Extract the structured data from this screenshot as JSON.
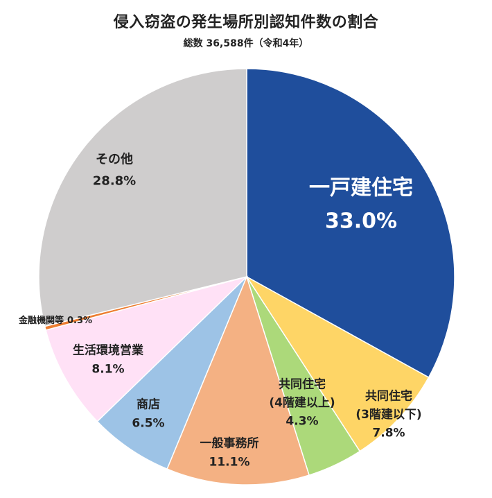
{
  "title": "侵入窃盗の発生場所別認知件数の割合",
  "subtitle": "総数 36,588件（令和4年）",
  "chart_data": {
    "type": "pie",
    "title": "侵入窃盗の発生場所別認知件数の割合",
    "subtitle": "総数 36,588件（令和4年）",
    "slices": [
      {
        "lines": [
          "一戸建住宅"
        ],
        "value": 33.0,
        "value_label": "33.0%",
        "color": "#1f4e9c",
        "text_color": "#ffffff"
      },
      {
        "lines": [
          "共同住宅",
          "(3階建以下)"
        ],
        "value": 7.8,
        "value_label": "7.8%",
        "color": "#fed566",
        "text_color": "#222222"
      },
      {
        "lines": [
          "共同住宅",
          "(4階建以上)"
        ],
        "value": 4.3,
        "value_label": "4.3%",
        "color": "#acd97a",
        "text_color": "#222222"
      },
      {
        "lines": [
          "一般事務所"
        ],
        "value": 11.1,
        "value_label": "11.1%",
        "color": "#f4b183",
        "text_color": "#222222"
      },
      {
        "lines": [
          "商店"
        ],
        "value": 6.5,
        "value_label": "6.5%",
        "color": "#9dc3e6",
        "text_color": "#222222"
      },
      {
        "lines": [
          "生活環境営業"
        ],
        "value": 8.1,
        "value_label": "8.1%",
        "color": "#ffe1f6",
        "text_color": "#222222"
      },
      {
        "lines": [
          "金融機関等"
        ],
        "value": 0.3,
        "value_label": "0.3%",
        "color": "#ed7d31",
        "text_color": "#222222"
      },
      {
        "lines": [
          "その他"
        ],
        "value": 28.8,
        "value_label": "28.8%",
        "color": "#cfcdcd",
        "text_color": "#222222"
      }
    ]
  }
}
